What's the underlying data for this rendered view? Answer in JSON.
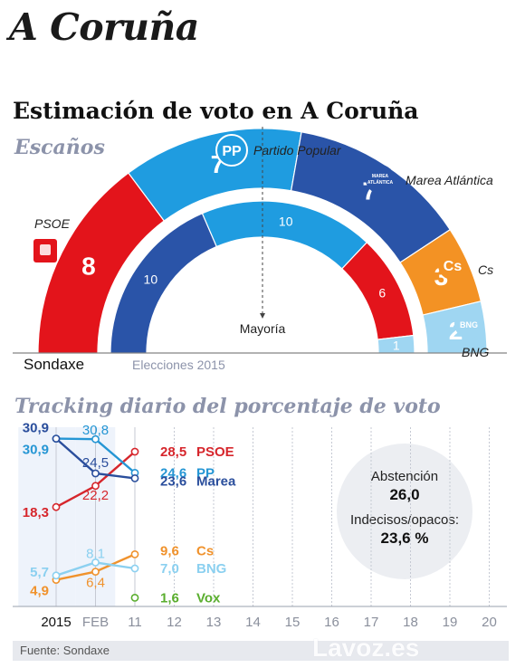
{
  "page_title": "A Coruña",
  "chart_title": "Estimación de voto en A Coruña",
  "seats_section_label": "Escaños",
  "tracking_section_label": "Tracking diario del porcentaje de voto",
  "footer": {
    "source": "Fuente: Sondaxe",
    "brand": "Lavoz.es"
  },
  "abstention": {
    "label": "Abstención",
    "value": "26,0",
    "undecided_label": "Indecisos/opacos:",
    "undecided_value": "23,6 %"
  },
  "chart_data": [
    {
      "type": "semicircle",
      "title": "Sondaxe",
      "majority_label": "Mayoría",
      "series": [
        {
          "name": "PSOE",
          "value": 8,
          "color": "#e3141b"
        },
        {
          "name": "Partido Popular",
          "value": 7,
          "color": "#1f9ce0",
          "icon": "PP",
          "icon_name": "pp-logo-icon"
        },
        {
          "name": "Marea Atlántica",
          "value": 7,
          "color": "#2a54a8",
          "icon": "MAREA ATLÁNTICA",
          "icon_name": "marea-logo-icon"
        },
        {
          "name": "Cs",
          "value": 3,
          "color": "#f39224",
          "icon": "Cs",
          "icon_name": "cs-logo-icon"
        },
        {
          "name": "BNG",
          "value": 2,
          "color": "#9fd6f2",
          "icon": "BNG",
          "icon_name": "bng-logo-icon"
        }
      ]
    },
    {
      "type": "semicircle",
      "title": "Elecciones 2015",
      "series": [
        {
          "name": "Marea Atlántica",
          "value": 10,
          "color": "#2a54a8"
        },
        {
          "name": "Partido Popular",
          "value": 10,
          "color": "#1f9ce0"
        },
        {
          "name": "PSOE",
          "value": 6,
          "color": "#e3141b"
        },
        {
          "name": "BNG",
          "value": 1,
          "color": "#9fd6f2"
        }
      ]
    },
    {
      "type": "line",
      "x": [
        "2015",
        "FEB",
        "11",
        "12",
        "13",
        "14",
        "15",
        "16",
        "17",
        "18",
        "19",
        "20"
      ],
      "series": [
        {
          "name": "PSOE",
          "color": "#d6262c",
          "points": [
            [
              0,
              18.3
            ],
            [
              1,
              22.2
            ],
            [
              2,
              28.5
            ]
          ],
          "labels": [
            "18,3",
            "22,2",
            "28,5"
          ]
        },
        {
          "name": "PP",
          "color": "#2596d4",
          "points": [
            [
              0,
              30.9
            ],
            [
              1,
              30.8
            ],
            [
              2,
              24.6
            ]
          ],
          "labels": [
            "30,9",
            "30,8",
            "24,6"
          ]
        },
        {
          "name": "Marea",
          "color": "#2a4e9c",
          "points": [
            [
              0,
              30.9
            ],
            [
              1,
              24.5
            ],
            [
              2,
              23.6
            ]
          ],
          "labels": [
            "30,9",
            "24,5",
            "23,6"
          ]
        },
        {
          "name": "Cs",
          "color": "#f0922c",
          "points": [
            [
              0,
              4.9
            ],
            [
              1,
              6.4
            ],
            [
              2,
              9.6
            ]
          ],
          "labels": [
            "4,9",
            "6,4",
            "9,6"
          ]
        },
        {
          "name": "BNG",
          "color": "#8bd0f0",
          "points": [
            [
              0,
              5.7
            ],
            [
              1,
              8.1
            ],
            [
              2,
              7.0
            ]
          ],
          "labels": [
            "5,7",
            "8,1",
            "7,0"
          ]
        },
        {
          "name": "Vox",
          "color": "#5aae2e",
          "points": [
            [
              2,
              1.6
            ]
          ],
          "labels": [
            "1,6"
          ]
        }
      ]
    }
  ]
}
